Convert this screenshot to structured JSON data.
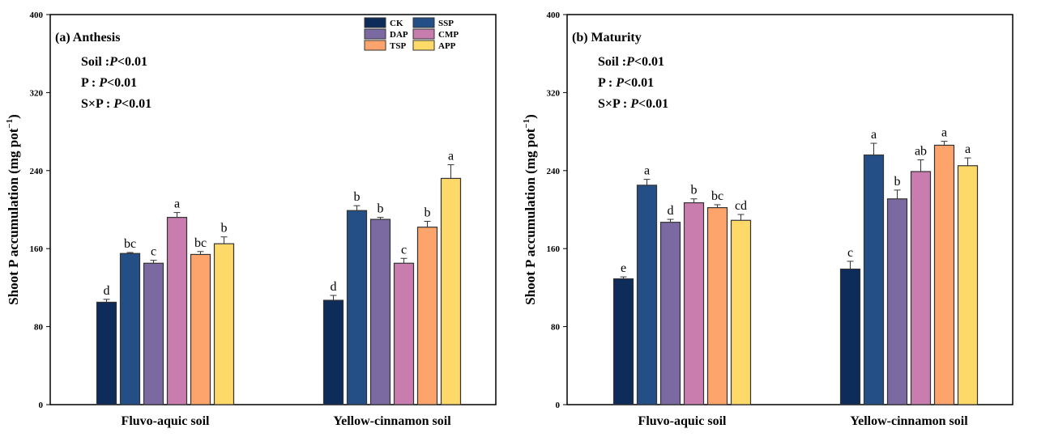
{
  "chart_data": [
    {
      "type": "bar",
      "title": "(a) Anthesis",
      "annotations": [
        "Soil :",
        "P<0.01",
        "P :",
        "P<0.01",
        "S×P :",
        "P<0.01"
      ],
      "stats": [
        {
          "label": "Soil :",
          "value": "P<0.01"
        },
        {
          "label": "P : ",
          "value": "P<0.01"
        },
        {
          "label": "S×P : ",
          "value": "P<0.01"
        }
      ],
      "ylabel": "Shoot P accumulation (mg pot",
      "ylabel_sup": "−1",
      "ylabel_close": ")",
      "ylim": [
        0,
        400
      ],
      "yticks": [
        0,
        80,
        160,
        240,
        320,
        400
      ],
      "categories": [
        "Fluvo-aquic soil",
        "Yellow-cinnamon soil"
      ],
      "legend_position": "top-right",
      "series": [
        {
          "name": "CK",
          "color": "#0d2c5a",
          "values": [
            105,
            107
          ],
          "errors": [
            3,
            5
          ],
          "letters": [
            "d",
            "d"
          ]
        },
        {
          "name": "SSP",
          "color": "#234f86",
          "values": [
            155,
            199
          ],
          "errors": [
            1,
            5
          ],
          "letters": [
            "bc",
            "b"
          ]
        },
        {
          "name": "DAP",
          "color": "#7a6aa1",
          "values": [
            145,
            190
          ],
          "errors": [
            3,
            2
          ],
          "letters": [
            "c",
            "b"
          ]
        },
        {
          "name": "CMP",
          "color": "#c97daf",
          "values": [
            192,
            145
          ],
          "errors": [
            5,
            5
          ],
          "letters": [
            "a",
            "c"
          ]
        },
        {
          "name": "TSP",
          "color": "#fca46c",
          "values": [
            154,
            182
          ],
          "errors": [
            3,
            6
          ],
          "letters": [
            "bc",
            "b"
          ]
        },
        {
          "name": "APP",
          "color": "#fdd96a",
          "values": [
            165,
            232
          ],
          "errors": [
            7,
            14
          ],
          "letters": [
            "b",
            "a"
          ]
        }
      ]
    },
    {
      "type": "bar",
      "title": "(b) Maturity",
      "stats": [
        {
          "label": "Soil :",
          "value": "P<0.01"
        },
        {
          "label": "P : ",
          "value": "P<0.01"
        },
        {
          "label": "S×P : ",
          "value": "P<0.01"
        }
      ],
      "ylabel": "Shoot P accumulation (mg pot",
      "ylabel_sup": "−1",
      "ylabel_close": ")",
      "ylim": [
        0,
        400
      ],
      "yticks": [
        0,
        80,
        160,
        240,
        320,
        400
      ],
      "categories": [
        "Fluvo-aquic soil",
        "Yellow-cinnamon soil"
      ],
      "series": [
        {
          "name": "CK",
          "color": "#0d2c5a",
          "values": [
            129,
            139
          ],
          "errors": [
            2,
            8
          ],
          "letters": [
            "e",
            "c"
          ]
        },
        {
          "name": "SSP",
          "color": "#234f86",
          "values": [
            225,
            256
          ],
          "errors": [
            6,
            12
          ],
          "letters": [
            "a",
            "a"
          ]
        },
        {
          "name": "DAP",
          "color": "#7a6aa1",
          "values": [
            187,
            211
          ],
          "errors": [
            3,
            9
          ],
          "letters": [
            "d",
            "b"
          ]
        },
        {
          "name": "CMP",
          "color": "#c97daf",
          "values": [
            207,
            239
          ],
          "errors": [
            4,
            12
          ],
          "letters": [
            "b",
            "ab"
          ]
        },
        {
          "name": "TSP",
          "color": "#fca46c",
          "values": [
            202,
            266
          ],
          "errors": [
            3,
            4
          ],
          "letters": [
            "bc",
            "a"
          ]
        },
        {
          "name": "APP",
          "color": "#fdd96a",
          "values": [
            189,
            245
          ],
          "errors": [
            6,
            8
          ],
          "letters": [
            "cd",
            "a"
          ]
        }
      ]
    }
  ]
}
